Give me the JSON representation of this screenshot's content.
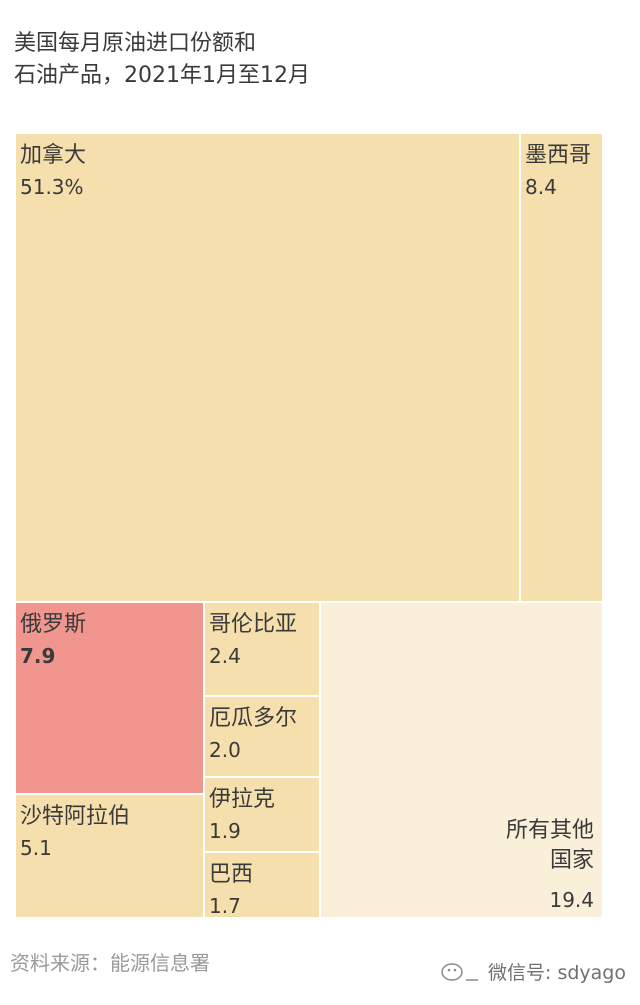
{
  "chart_data": {
    "type": "treemap",
    "title_lines": [
      "美国每月原油进口份额和",
      "石油产品，2021年1月至12月"
    ],
    "unit": "%",
    "items": [
      {
        "label": "加拿大",
        "value_label": "51.3%",
        "value": 51.3,
        "color": "#f5e0ad",
        "highlight": false
      },
      {
        "label": "墨西哥",
        "value_label": "8.4",
        "value": 8.4,
        "color": "#f5e0ad",
        "highlight": false
      },
      {
        "label": "俄罗斯",
        "value_label": "7.9",
        "value": 7.9,
        "color": "#f0968e",
        "highlight": true
      },
      {
        "label": "沙特阿拉伯",
        "value_label": "5.1",
        "value": 5.1,
        "color": "#f5e0ad",
        "highlight": false
      },
      {
        "label": "哥伦比亚",
        "value_label": "2.4",
        "value": 2.4,
        "color": "#f5e0ad",
        "highlight": false
      },
      {
        "label": "厄瓜多尔",
        "value_label": "2.0",
        "value": 2.0,
        "color": "#f5e0ad",
        "highlight": false
      },
      {
        "label": "伊拉克",
        "value_label": "1.9",
        "value": 1.9,
        "color": "#f5e0ad",
        "highlight": false
      },
      {
        "label": "巴西",
        "value_label": "1.7",
        "value": 1.7,
        "color": "#f5e0ad",
        "highlight": false
      },
      {
        "label_lines": [
          "所有其他",
          "国家"
        ],
        "value_label": "19.4",
        "value": 19.4,
        "color": "#faf0d9",
        "highlight": false
      }
    ]
  },
  "footer": {
    "source": "资料来源：能源信息署",
    "watermark": "微信号: sdyago"
  }
}
